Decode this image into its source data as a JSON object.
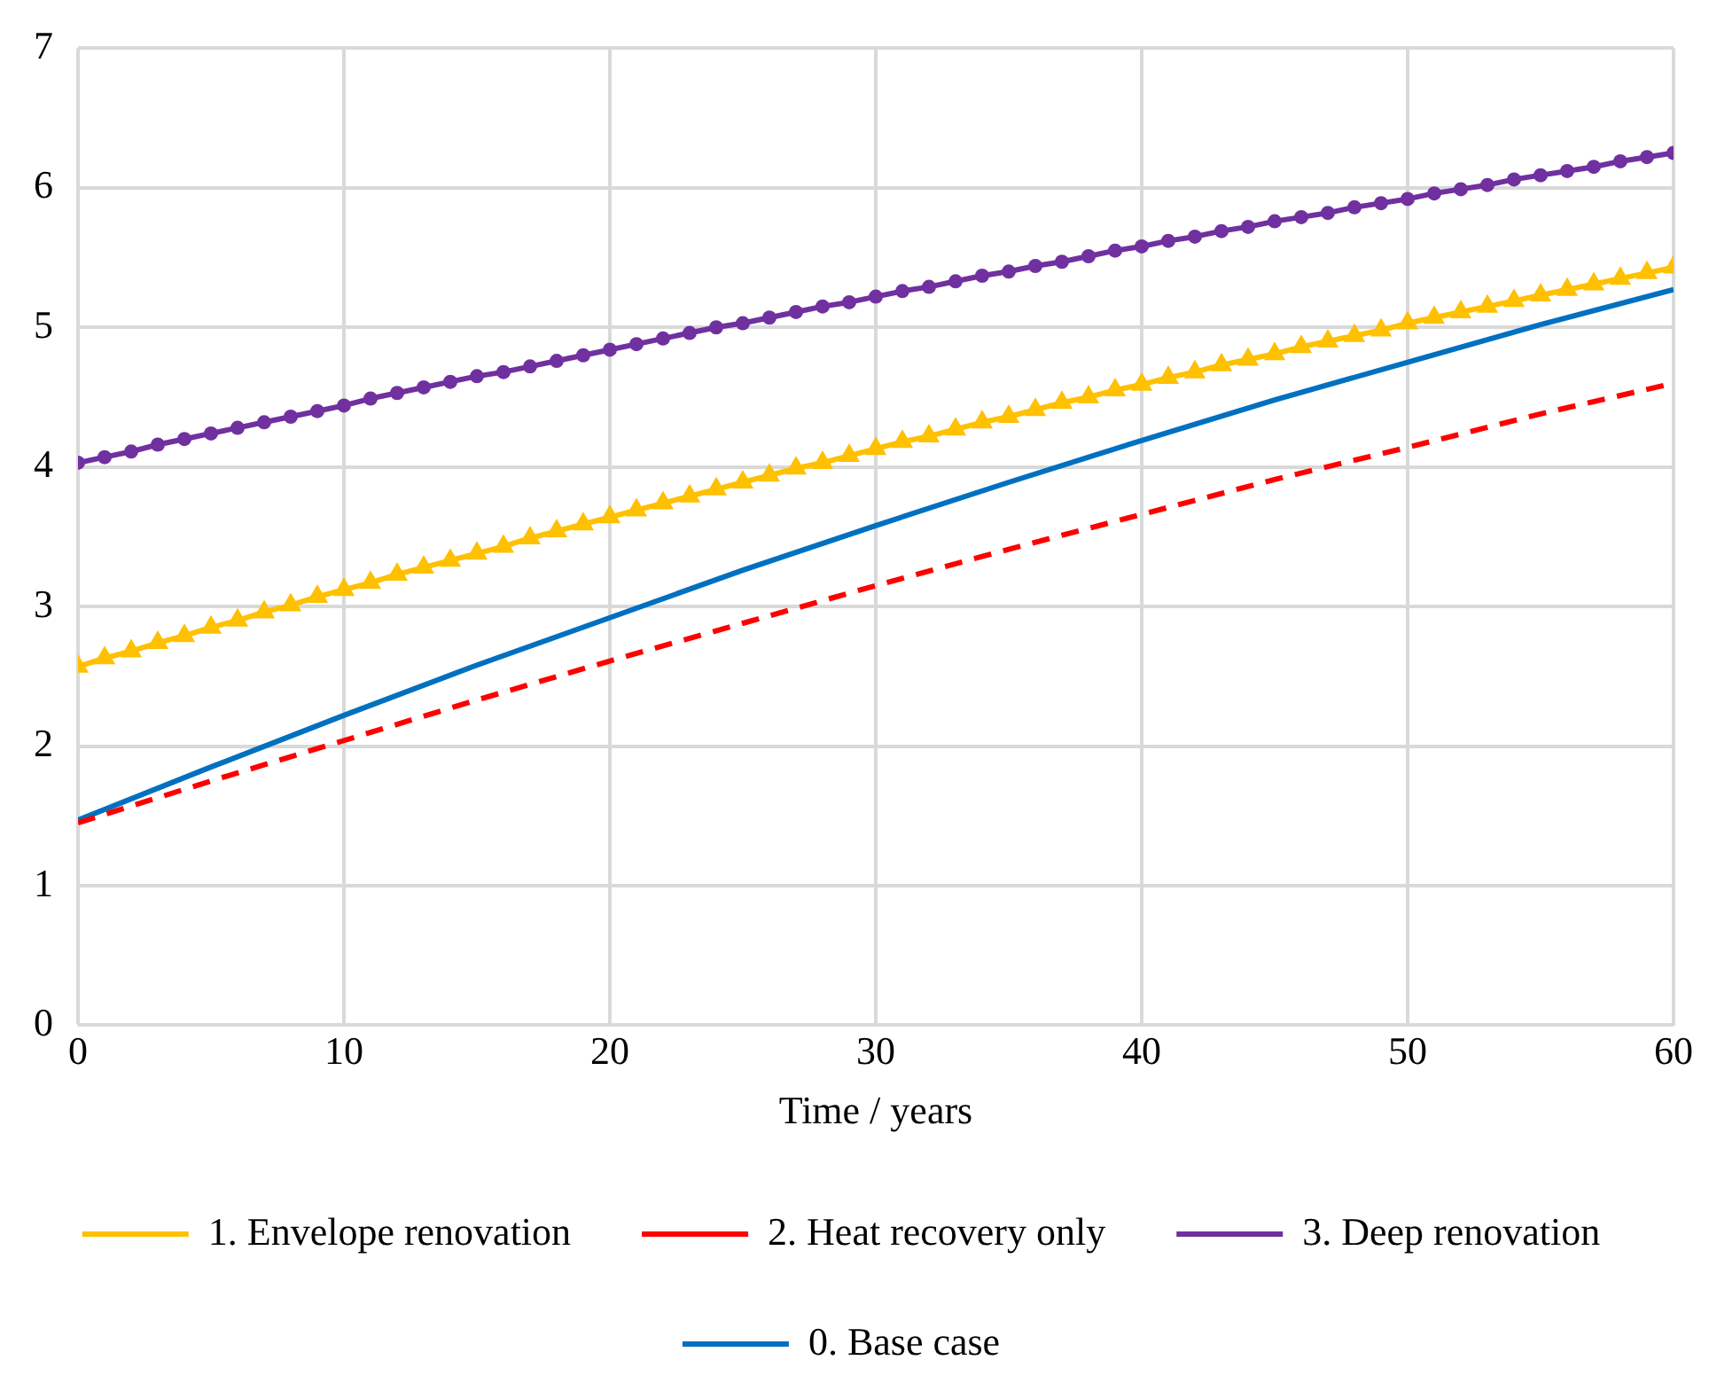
{
  "chart_data": {
    "type": "line",
    "xlabel": "Time / years",
    "xlim": [
      0,
      60
    ],
    "xticks": [
      0,
      10,
      20,
      30,
      40,
      50,
      60
    ],
    "ylim": [
      0,
      7
    ],
    "yticks": [
      0,
      1,
      2,
      3,
      4,
      5,
      6,
      7
    ],
    "grid": true,
    "legend": "bottom",
    "series": [
      {
        "name": "1. Envelope renovation",
        "color": "#ffc000",
        "marker": "triangle",
        "line_style": "solid",
        "x": [
          0,
          1,
          2,
          3,
          4,
          5,
          6,
          7,
          8,
          9,
          10,
          11,
          12,
          13,
          14,
          15,
          16,
          17,
          18,
          19,
          20,
          21,
          22,
          23,
          24,
          25,
          26,
          27,
          28,
          29,
          30,
          31,
          32,
          33,
          34,
          35,
          36,
          37,
          38,
          39,
          40,
          41,
          42,
          43,
          44,
          45,
          46,
          47,
          48,
          49,
          50,
          51,
          52,
          53,
          54,
          55,
          56,
          57,
          58,
          59,
          60
        ],
        "values": [
          2.57,
          2.63,
          2.68,
          2.74,
          2.79,
          2.85,
          2.9,
          2.96,
          3.01,
          3.07,
          3.12,
          3.17,
          3.23,
          3.28,
          3.33,
          3.38,
          3.43,
          3.49,
          3.54,
          3.59,
          3.64,
          3.69,
          3.74,
          3.79,
          3.84,
          3.89,
          3.94,
          3.99,
          4.03,
          4.08,
          4.13,
          4.18,
          4.22,
          4.27,
          4.32,
          4.36,
          4.41,
          4.46,
          4.5,
          4.55,
          4.59,
          4.64,
          4.68,
          4.73,
          4.77,
          4.81,
          4.86,
          4.9,
          4.94,
          4.98,
          5.03,
          5.07,
          5.11,
          5.15,
          5.19,
          5.23,
          5.27,
          5.31,
          5.35,
          5.39,
          5.43
        ]
      },
      {
        "name": "2. Heat recovery only",
        "color": "#ff0000",
        "marker": "none",
        "line_style": "dashed",
        "x": [
          0,
          5,
          10,
          15,
          20,
          25,
          30,
          35,
          40,
          45,
          50,
          55,
          60
        ],
        "values": [
          1.45,
          1.75,
          2.04,
          2.33,
          2.61,
          2.88,
          3.15,
          3.41,
          3.66,
          3.91,
          4.14,
          4.38,
          4.6
        ]
      },
      {
        "name": "3. Deep renovation",
        "color": "#7030a0",
        "marker": "circle",
        "line_style": "solid",
        "x": [
          0,
          1,
          2,
          3,
          4,
          5,
          6,
          7,
          8,
          9,
          10,
          11,
          12,
          13,
          14,
          15,
          16,
          17,
          18,
          19,
          20,
          21,
          22,
          23,
          24,
          25,
          26,
          27,
          28,
          29,
          30,
          31,
          32,
          33,
          34,
          35,
          36,
          37,
          38,
          39,
          40,
          41,
          42,
          43,
          44,
          45,
          46,
          47,
          48,
          49,
          50,
          51,
          52,
          53,
          54,
          55,
          56,
          57,
          58,
          59,
          60
        ],
        "values": [
          4.03,
          4.07,
          4.11,
          4.16,
          4.2,
          4.24,
          4.28,
          4.32,
          4.36,
          4.4,
          4.44,
          4.49,
          4.53,
          4.57,
          4.61,
          4.65,
          4.68,
          4.72,
          4.76,
          4.8,
          4.84,
          4.88,
          4.92,
          4.96,
          5.0,
          5.03,
          5.07,
          5.11,
          5.15,
          5.18,
          5.22,
          5.26,
          5.29,
          5.33,
          5.37,
          5.4,
          5.44,
          5.47,
          5.51,
          5.55,
          5.58,
          5.62,
          5.65,
          5.69,
          5.72,
          5.76,
          5.79,
          5.82,
          5.86,
          5.89,
          5.92,
          5.96,
          5.99,
          6.02,
          6.06,
          6.09,
          6.12,
          6.15,
          6.19,
          6.22,
          6.25
        ]
      },
      {
        "name": "0. Base case",
        "color": "#0070c0",
        "marker": "none",
        "line_style": "solid",
        "x": [
          0,
          5,
          10,
          15,
          20,
          25,
          30,
          35,
          40,
          45,
          50,
          55,
          60
        ],
        "values": [
          1.47,
          1.85,
          2.22,
          2.58,
          2.92,
          3.26,
          3.58,
          3.89,
          4.19,
          4.48,
          4.75,
          5.02,
          5.27
        ]
      }
    ]
  }
}
